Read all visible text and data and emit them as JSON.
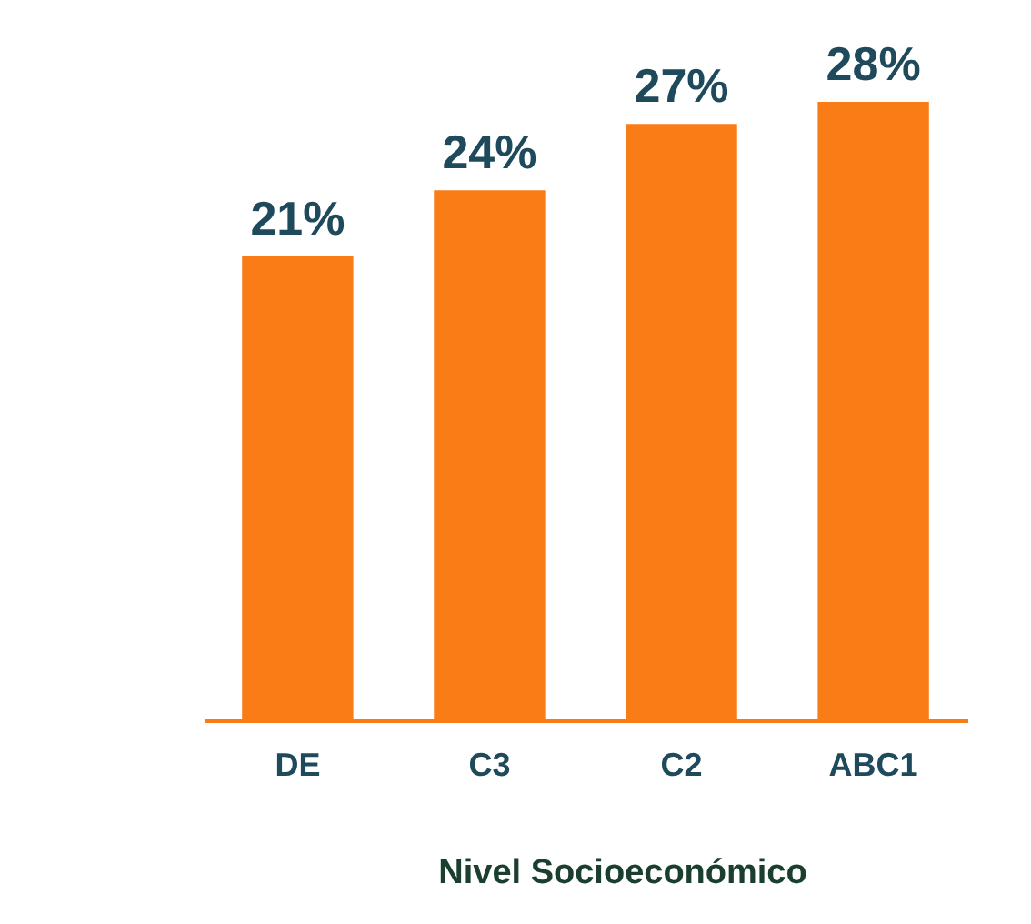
{
  "chart_data": {
    "type": "bar",
    "xlabel": "Nivel Socioeconómico",
    "categories": [
      "DE",
      "C3",
      "C2",
      "ABC1"
    ],
    "values": [
      21,
      24,
      27,
      28
    ],
    "value_labels": [
      "21%",
      "24%",
      "27%",
      "28%"
    ],
    "color": "#f97c16",
    "grid": false
  }
}
